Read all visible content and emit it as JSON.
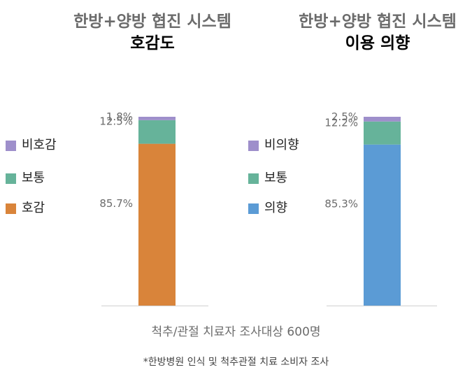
{
  "chart_data": [
    {
      "type": "bar",
      "stacked": true,
      "title_line1": "한방+양방 협진 시스템",
      "title_line2": "호감도",
      "categories": [
        ""
      ],
      "series": [
        {
          "name": "호감",
          "values": [
            85.7
          ],
          "color": "#D9843A",
          "label": "85.7%"
        },
        {
          "name": "보통",
          "values": [
            12.5
          ],
          "color": "#66B39A",
          "label": "12.5%"
        },
        {
          "name": "비호감",
          "values": [
            1.8
          ],
          "color": "#9E8FCB",
          "label": "1.8%"
        }
      ],
      "legend": {
        "placement": "left",
        "order": [
          "비호감",
          "보통",
          "호감"
        ]
      },
      "ylim": [
        0,
        100
      ],
      "grid": false
    },
    {
      "type": "bar",
      "stacked": true,
      "title_line1": "한방+양방 협진 시스템",
      "title_line2": "이용 의향",
      "categories": [
        ""
      ],
      "series": [
        {
          "name": "의향",
          "values": [
            85.3
          ],
          "color": "#5B9BD5",
          "label": "85.3%"
        },
        {
          "name": "보통",
          "values": [
            12.2
          ],
          "color": "#66B39A",
          "label": "12.2%"
        },
        {
          "name": "비의향",
          "values": [
            2.5
          ],
          "color": "#9E8FCB",
          "label": "2.5%"
        }
      ],
      "legend": {
        "placement": "left",
        "order": [
          "비의향",
          "보통",
          "의향"
        ]
      },
      "ylim": [
        0,
        100
      ],
      "grid": false
    }
  ],
  "caption": {
    "xlabel": "척추/관절 치료자 조사대상 600명",
    "footnote": "*한방병원 인식 및 척추관절 치료 소비자 조사"
  },
  "colors": {
    "axis": "#d0d0d0",
    "label_text": "#6b6b6b"
  }
}
